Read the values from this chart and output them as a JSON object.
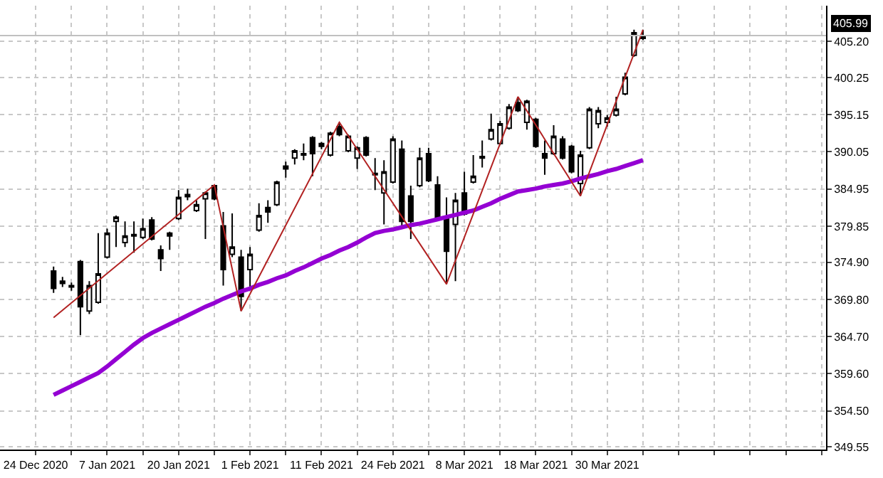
{
  "chart_data": {
    "type": "candlestick",
    "color": "#000000",
    "categories": [
      "24 Dec 2020",
      null,
      null,
      null,
      null,
      null,
      null,
      null,
      "7 Jan 2021",
      null,
      null,
      null,
      null,
      null,
      null,
      null,
      "20 Jan 2021",
      null,
      null,
      null,
      null,
      null,
      null,
      null,
      "1 Feb 2021",
      null,
      null,
      null,
      null,
      null,
      null,
      null,
      "11 Feb 2021",
      null,
      null,
      null,
      null,
      null,
      null,
      null,
      "24 Feb 2021",
      null,
      null,
      null,
      null,
      null,
      null,
      null,
      "8 Mar 2021",
      null,
      null,
      null,
      null,
      null,
      null,
      null,
      "18 Mar 2021",
      null,
      null,
      null,
      null,
      null,
      null,
      null,
      "30 Mar 2021",
      null,
      null,
      null,
      null,
      null,
      null,
      null,
      null,
      null,
      null,
      null,
      null,
      null,
      null,
      null,
      null,
      null,
      null,
      null,
      null,
      null,
      null,
      null,
      null,
      null
    ],
    "ohlc": [
      null,
      null,
      [
        373.7,
        374.3,
        370.7,
        371.3
      ],
      [
        372.3,
        372.9,
        371.5,
        372.0
      ],
      [
        371.5,
        372.1,
        371.0,
        371.7
      ],
      [
        375.0,
        375.2,
        364.9,
        368.8
      ],
      [
        368.2,
        372.3,
        367.8,
        371.7
      ],
      [
        369.4,
        378.9,
        369.2,
        373.3
      ],
      [
        375.6,
        379.5,
        375.4,
        378.9
      ],
      [
        380.5,
        381.3,
        377.0,
        381.1
      ],
      [
        377.6,
        380.5,
        377.0,
        378.5
      ],
      [
        378.5,
        380.5,
        376.2,
        378.7
      ],
      [
        378.3,
        380.9,
        378.1,
        379.5
      ],
      [
        380.7,
        381.1,
        377.9,
        378.1
      ],
      [
        376.6,
        377.2,
        373.7,
        375.4
      ],
      [
        378.5,
        379.1,
        376.6,
        378.9
      ],
      [
        380.9,
        384.8,
        380.7,
        383.8
      ],
      [
        383.9,
        385.0,
        383.4,
        384.2
      ],
      [
        382.0,
        383.4,
        381.8,
        382.8
      ],
      [
        383.6,
        384.6,
        378.1,
        384.4
      ],
      [
        385.4,
        385.5,
        383.4,
        383.6
      ],
      [
        379.9,
        381.8,
        371.7,
        373.9
      ],
      [
        376.0,
        381.6,
        375.6,
        377.0
      ],
      [
        375.6,
        376.6,
        368.2,
        370.2
      ],
      [
        373.9,
        377.0,
        371.3,
        376.0
      ],
      [
        379.3,
        383.0,
        379.1,
        381.3
      ],
      [
        382.4,
        383.4,
        380.3,
        381.8
      ],
      [
        382.8,
        386.1,
        382.6,
        385.9
      ],
      [
        388.1,
        388.7,
        386.5,
        387.7
      ],
      [
        389.2,
        390.4,
        388.3,
        390.2
      ],
      [
        389.6,
        391.2,
        388.9,
        389.8
      ],
      [
        392.0,
        392.2,
        386.7,
        389.8
      ],
      [
        390.8,
        391.4,
        390.4,
        391.2
      ],
      [
        389.6,
        392.8,
        389.4,
        392.6
      ],
      [
        393.5,
        394.1,
        392.2,
        392.4
      ],
      [
        390.2,
        392.4,
        390.0,
        392.2
      ],
      [
        389.2,
        390.8,
        387.7,
        390.6
      ],
      [
        392.0,
        392.2,
        389.4,
        389.6
      ],
      [
        387.1,
        389.2,
        384.8,
        386.9
      ],
      [
        384.4,
        388.9,
        380.1,
        387.3
      ],
      [
        385.9,
        392.2,
        385.7,
        391.8
      ],
      [
        390.4,
        391.6,
        379.9,
        380.5
      ],
      [
        384.0,
        385.4,
        378.1,
        380.5
      ],
      [
        385.4,
        390.6,
        385.2,
        389.2
      ],
      [
        389.8,
        390.6,
        385.9,
        386.1
      ],
      [
        385.5,
        386.7,
        380.9,
        381.1
      ],
      [
        381.1,
        383.8,
        371.9,
        376.4
      ],
      [
        380.1,
        384.4,
        372.3,
        383.4
      ],
      [
        384.4,
        387.3,
        381.3,
        381.5
      ],
      [
        385.9,
        389.6,
        385.7,
        386.7
      ],
      [
        389.2,
        391.6,
        387.9,
        389.4
      ],
      [
        391.8,
        395.3,
        391.6,
        393.1
      ],
      [
        391.2,
        394.3,
        391.0,
        393.9
      ],
      [
        393.3,
        396.6,
        393.1,
        396.2
      ],
      [
        396.8,
        397.6,
        395.5,
        395.7
      ],
      [
        394.1,
        397.2,
        393.1,
        397.0
      ],
      [
        394.5,
        394.7,
        390.6,
        390.8
      ],
      [
        389.8,
        391.6,
        386.9,
        389.2
      ],
      [
        389.8,
        393.7,
        389.6,
        392.2
      ],
      [
        391.8,
        392.2,
        389.0,
        389.2
      ],
      [
        390.8,
        391.0,
        387.1,
        387.3
      ],
      [
        385.7,
        390.2,
        384.0,
        389.6
      ],
      [
        390.6,
        396.2,
        390.4,
        395.9
      ],
      [
        393.9,
        396.2,
        393.3,
        395.7
      ],
      [
        394.1,
        395.1,
        393.5,
        394.7
      ],
      [
        395.1,
        397.6,
        394.9,
        395.9
      ],
      [
        398.0,
        400.9,
        397.8,
        400.3
      ],
      [
        403.3,
        406.8,
        403.1,
        406.4
      ],
      [
        405.6,
        406.8,
        405.4,
        405.99
      ],
      null,
      null,
      null,
      null,
      null,
      null,
      null,
      null,
      null,
      null,
      null,
      null,
      null,
      null,
      null,
      null,
      null,
      null,
      null,
      null,
      null
    ],
    "series": [
      {
        "type": "line",
        "color": "#9400d3",
        "values": [
          null,
          null,
          356.7,
          357.3,
          357.9,
          358.5,
          359.1,
          359.7,
          360.6,
          361.6,
          362.6,
          363.6,
          364.5,
          365.2,
          365.8,
          366.4,
          367.0,
          367.6,
          368.2,
          368.8,
          369.3,
          369.9,
          370.4,
          370.9,
          371.3,
          371.8,
          372.2,
          372.7,
          373.1,
          373.7,
          374.2,
          374.8,
          375.4,
          375.9,
          376.5,
          377.0,
          377.6,
          378.3,
          378.9,
          379.2,
          379.4,
          379.7,
          380.0,
          380.2,
          380.5,
          380.8,
          381.1,
          381.4,
          381.7,
          382.0,
          382.5,
          383.0,
          383.6,
          384.1,
          384.6,
          384.8,
          385.0,
          385.3,
          385.5,
          385.7,
          386.0,
          386.4,
          386.7,
          387.0,
          387.4,
          387.7,
          388.1,
          388.5,
          388.9,
          null,
          null,
          null,
          null,
          null,
          null,
          null,
          null,
          null,
          null,
          null,
          null,
          null,
          null,
          null,
          null,
          null,
          null,
          null,
          null,
          null
        ]
      },
      {
        "type": "line",
        "color": "#b22222",
        "values": [
          null,
          null,
          367.3,
          null,
          null,
          null,
          null,
          null,
          null,
          null,
          null,
          null,
          null,
          null,
          null,
          null,
          null,
          null,
          null,
          null,
          385.5,
          null,
          null,
          368.2,
          null,
          null,
          null,
          null,
          null,
          null,
          null,
          null,
          null,
          null,
          394.1,
          null,
          null,
          null,
          null,
          null,
          null,
          null,
          null,
          null,
          null,
          null,
          371.9,
          null,
          null,
          null,
          null,
          null,
          null,
          null,
          397.6,
          null,
          null,
          null,
          null,
          null,
          null,
          384.0,
          null,
          null,
          null,
          null,
          null,
          null,
          406.8,
          null,
          null,
          null,
          null,
          null,
          null,
          null,
          null,
          null,
          null,
          null,
          null,
          null,
          null,
          null,
          null,
          null,
          null,
          null,
          null,
          null
        ]
      }
    ],
    "ylim": [
      349.2,
      410.1
    ],
    "yticks": [
      349.55,
      {
        "value": 354.5,
        "label": "354.50"
      },
      {
        "value": 359.6,
        "label": "359.60"
      },
      {
        "value": 364.7,
        "label": "364.70"
      },
      {
        "value": 369.8,
        "label": "369.80"
      },
      {
        "value": 374.9,
        "label": "374.90"
      },
      379.85,
      384.95,
      390.05,
      395.15,
      400.25,
      {
        "value": 405.2,
        "label": "405.20"
      }
    ],
    "ref_lines": [
      {
        "axis": "y",
        "value": 405.99,
        "label": "405.99",
        "color": "#c0c0c0"
      }
    ],
    "grid": true
  }
}
